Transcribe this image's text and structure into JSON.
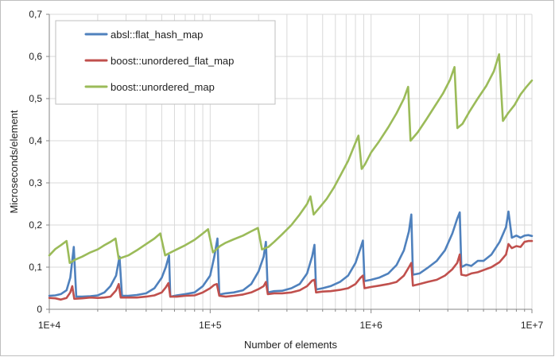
{
  "chart_data": {
    "type": "line",
    "xlabel": "Number of elements",
    "ylabel": "Microseconds/element",
    "x_scale": "log",
    "xlim": [
      10000,
      10000000
    ],
    "ylim": [
      0,
      0.7
    ],
    "grid": true,
    "legend_position": "top-left",
    "x_ticks": [
      {
        "value": 10000,
        "label": "1E+4"
      },
      {
        "value": 100000,
        "label": "1E+5"
      },
      {
        "value": 1000000,
        "label": "1E+6"
      },
      {
        "value": 10000000,
        "label": "1E+7"
      }
    ],
    "y_ticks": [
      {
        "value": 0,
        "label": "0"
      },
      {
        "value": 0.1,
        "label": "0,1"
      },
      {
        "value": 0.2,
        "label": "0,2"
      },
      {
        "value": 0.3,
        "label": "0,3"
      },
      {
        "value": 0.4,
        "label": "0,4"
      },
      {
        "value": 0.5,
        "label": "0,5"
      },
      {
        "value": 0.6,
        "label": "0,6"
      },
      {
        "value": 0.7,
        "label": "0,7"
      }
    ],
    "series": [
      {
        "name": "absl::flat_hash_map",
        "color": "#4f81bd",
        "points": [
          [
            10000,
            0.032
          ],
          [
            10900,
            0.033
          ],
          [
            11800,
            0.036
          ],
          [
            12800,
            0.045
          ],
          [
            13500,
            0.075
          ],
          [
            14200,
            0.148
          ],
          [
            14700,
            0.03
          ],
          [
            16000,
            0.03
          ],
          [
            18000,
            0.031
          ],
          [
            20000,
            0.033
          ],
          [
            22000,
            0.04
          ],
          [
            24000,
            0.055
          ],
          [
            26000,
            0.08
          ],
          [
            27300,
            0.125
          ],
          [
            28300,
            0.032
          ],
          [
            31000,
            0.032
          ],
          [
            35000,
            0.034
          ],
          [
            40000,
            0.038
          ],
          [
            45000,
            0.05
          ],
          [
            50000,
            0.075
          ],
          [
            53000,
            0.1
          ],
          [
            55500,
            0.128
          ],
          [
            56500,
            0.03
          ],
          [
            62000,
            0.033
          ],
          [
            70000,
            0.036
          ],
          [
            80000,
            0.04
          ],
          [
            90000,
            0.055
          ],
          [
            100000,
            0.08
          ],
          [
            106000,
            0.125
          ],
          [
            111000,
            0.168
          ],
          [
            114000,
            0.035
          ],
          [
            125000,
            0.038
          ],
          [
            140000,
            0.04
          ],
          [
            160000,
            0.045
          ],
          [
            180000,
            0.06
          ],
          [
            200000,
            0.09
          ],
          [
            215000,
            0.125
          ],
          [
            222000,
            0.16
          ],
          [
            228000,
            0.04
          ],
          [
            250000,
            0.043
          ],
          [
            280000,
            0.044
          ],
          [
            320000,
            0.05
          ],
          [
            360000,
            0.06
          ],
          [
            400000,
            0.085
          ],
          [
            430000,
            0.125
          ],
          [
            445000,
            0.153
          ],
          [
            455000,
            0.047
          ],
          [
            500000,
            0.05
          ],
          [
            560000,
            0.055
          ],
          [
            640000,
            0.065
          ],
          [
            720000,
            0.08
          ],
          [
            800000,
            0.11
          ],
          [
            860000,
            0.145
          ],
          [
            890000,
            0.163
          ],
          [
            910000,
            0.067
          ],
          [
            1000000,
            0.07
          ],
          [
            1120000,
            0.075
          ],
          [
            1280000,
            0.085
          ],
          [
            1440000,
            0.105
          ],
          [
            1600000,
            0.14
          ],
          [
            1720000,
            0.185
          ],
          [
            1780000,
            0.225
          ],
          [
            1820000,
            0.082
          ],
          [
            2000000,
            0.085
          ],
          [
            2240000,
            0.098
          ],
          [
            2560000,
            0.115
          ],
          [
            2880000,
            0.14
          ],
          [
            3200000,
            0.18
          ],
          [
            3430000,
            0.215
          ],
          [
            3560000,
            0.23
          ],
          [
            3640000,
            0.1
          ],
          [
            3900000,
            0.106
          ],
          [
            4200000,
            0.103
          ],
          [
            4600000,
            0.115
          ],
          [
            5000000,
            0.115
          ],
          [
            5600000,
            0.13
          ],
          [
            6300000,
            0.16
          ],
          [
            6900000,
            0.195
          ],
          [
            7150000,
            0.232
          ],
          [
            7500000,
            0.17
          ],
          [
            8000000,
            0.175
          ],
          [
            8500000,
            0.17
          ],
          [
            9000000,
            0.175
          ],
          [
            9500000,
            0.176
          ],
          [
            10000000,
            0.174
          ]
        ]
      },
      {
        "name": "boost::unordered_flat_map",
        "color": "#c0504d",
        "points": [
          [
            10000,
            0.027
          ],
          [
            10900,
            0.026
          ],
          [
            11800,
            0.023
          ],
          [
            12800,
            0.027
          ],
          [
            13500,
            0.04
          ],
          [
            13900,
            0.055
          ],
          [
            14300,
            0.025
          ],
          [
            16000,
            0.026
          ],
          [
            18000,
            0.028
          ],
          [
            20000,
            0.027
          ],
          [
            22000,
            0.028
          ],
          [
            24000,
            0.03
          ],
          [
            26000,
            0.045
          ],
          [
            27000,
            0.06
          ],
          [
            27800,
            0.028
          ],
          [
            31000,
            0.028
          ],
          [
            35000,
            0.028
          ],
          [
            40000,
            0.03
          ],
          [
            45000,
            0.033
          ],
          [
            50000,
            0.04
          ],
          [
            53000,
            0.052
          ],
          [
            55000,
            0.062
          ],
          [
            56500,
            0.03
          ],
          [
            62000,
            0.03
          ],
          [
            70000,
            0.032
          ],
          [
            80000,
            0.033
          ],
          [
            90000,
            0.04
          ],
          [
            100000,
            0.05
          ],
          [
            106000,
            0.058
          ],
          [
            110000,
            0.06
          ],
          [
            114000,
            0.032
          ],
          [
            125000,
            0.03
          ],
          [
            140000,
            0.032
          ],
          [
            160000,
            0.035
          ],
          [
            180000,
            0.04
          ],
          [
            200000,
            0.048
          ],
          [
            215000,
            0.055
          ],
          [
            222000,
            0.065
          ],
          [
            228000,
            0.036
          ],
          [
            250000,
            0.038
          ],
          [
            280000,
            0.038
          ],
          [
            320000,
            0.04
          ],
          [
            360000,
            0.045
          ],
          [
            400000,
            0.055
          ],
          [
            430000,
            0.068
          ],
          [
            445000,
            0.07
          ],
          [
            455000,
            0.04
          ],
          [
            500000,
            0.042
          ],
          [
            560000,
            0.043
          ],
          [
            640000,
            0.046
          ],
          [
            720000,
            0.05
          ],
          [
            800000,
            0.06
          ],
          [
            860000,
            0.075
          ],
          [
            890000,
            0.08
          ],
          [
            910000,
            0.05
          ],
          [
            1000000,
            0.053
          ],
          [
            1120000,
            0.056
          ],
          [
            1280000,
            0.06
          ],
          [
            1440000,
            0.065
          ],
          [
            1600000,
            0.08
          ],
          [
            1720000,
            0.1
          ],
          [
            1780000,
            0.11
          ],
          [
            1820000,
            0.056
          ],
          [
            2000000,
            0.06
          ],
          [
            2240000,
            0.065
          ],
          [
            2560000,
            0.07
          ],
          [
            2880000,
            0.08
          ],
          [
            3200000,
            0.095
          ],
          [
            3430000,
            0.11
          ],
          [
            3560000,
            0.13
          ],
          [
            3640000,
            0.082
          ],
          [
            3900000,
            0.08
          ],
          [
            4200000,
            0.085
          ],
          [
            4600000,
            0.088
          ],
          [
            5000000,
            0.093
          ],
          [
            5600000,
            0.1
          ],
          [
            6300000,
            0.112
          ],
          [
            6900000,
            0.13
          ],
          [
            7150000,
            0.155
          ],
          [
            7500000,
            0.145
          ],
          [
            8000000,
            0.15
          ],
          [
            8500000,
            0.148
          ],
          [
            9000000,
            0.16
          ],
          [
            9500000,
            0.162
          ],
          [
            10000000,
            0.162
          ]
        ]
      },
      {
        "name": "boost::unordered_map",
        "color": "#9bbb59",
        "points": [
          [
            10000,
            0.128
          ],
          [
            10900,
            0.143
          ],
          [
            11800,
            0.152
          ],
          [
            12800,
            0.162
          ],
          [
            13400,
            0.11
          ],
          [
            14500,
            0.118
          ],
          [
            16000,
            0.125
          ],
          [
            18000,
            0.135
          ],
          [
            20000,
            0.142
          ],
          [
            22000,
            0.152
          ],
          [
            24000,
            0.16
          ],
          [
            25800,
            0.168
          ],
          [
            27000,
            0.12
          ],
          [
            31000,
            0.128
          ],
          [
            35000,
            0.14
          ],
          [
            40000,
            0.155
          ],
          [
            45000,
            0.168
          ],
          [
            49000,
            0.18
          ],
          [
            52500,
            0.128
          ],
          [
            57000,
            0.135
          ],
          [
            62000,
            0.142
          ],
          [
            70000,
            0.152
          ],
          [
            80000,
            0.165
          ],
          [
            90000,
            0.18
          ],
          [
            97000,
            0.19
          ],
          [
            104000,
            0.135
          ],
          [
            115000,
            0.15
          ],
          [
            125000,
            0.158
          ],
          [
            140000,
            0.166
          ],
          [
            160000,
            0.175
          ],
          [
            180000,
            0.185
          ],
          [
            198000,
            0.193
          ],
          [
            210000,
            0.142
          ],
          [
            230000,
            0.148
          ],
          [
            250000,
            0.16
          ],
          [
            280000,
            0.178
          ],
          [
            320000,
            0.2
          ],
          [
            360000,
            0.225
          ],
          [
            400000,
            0.25
          ],
          [
            420000,
            0.268
          ],
          [
            440000,
            0.225
          ],
          [
            480000,
            0.242
          ],
          [
            530000,
            0.262
          ],
          [
            590000,
            0.29
          ],
          [
            650000,
            0.32
          ],
          [
            720000,
            0.352
          ],
          [
            790000,
            0.39
          ],
          [
            835000,
            0.412
          ],
          [
            875000,
            0.333
          ],
          [
            920000,
            0.345
          ],
          [
            1000000,
            0.372
          ],
          [
            1120000,
            0.398
          ],
          [
            1280000,
            0.432
          ],
          [
            1440000,
            0.465
          ],
          [
            1600000,
            0.5
          ],
          [
            1700000,
            0.528
          ],
          [
            1760000,
            0.4
          ],
          [
            1950000,
            0.42
          ],
          [
            2200000,
            0.45
          ],
          [
            2500000,
            0.483
          ],
          [
            2800000,
            0.512
          ],
          [
            3100000,
            0.545
          ],
          [
            3300000,
            0.575
          ],
          [
            3440000,
            0.43
          ],
          [
            3700000,
            0.44
          ],
          [
            4100000,
            0.47
          ],
          [
            4600000,
            0.5
          ],
          [
            5200000,
            0.53
          ],
          [
            5800000,
            0.565
          ],
          [
            6250000,
            0.605
          ],
          [
            6600000,
            0.447
          ],
          [
            7100000,
            0.465
          ],
          [
            7800000,
            0.485
          ],
          [
            8500000,
            0.51
          ],
          [
            9200000,
            0.527
          ],
          [
            10000000,
            0.543
          ]
        ]
      }
    ]
  }
}
